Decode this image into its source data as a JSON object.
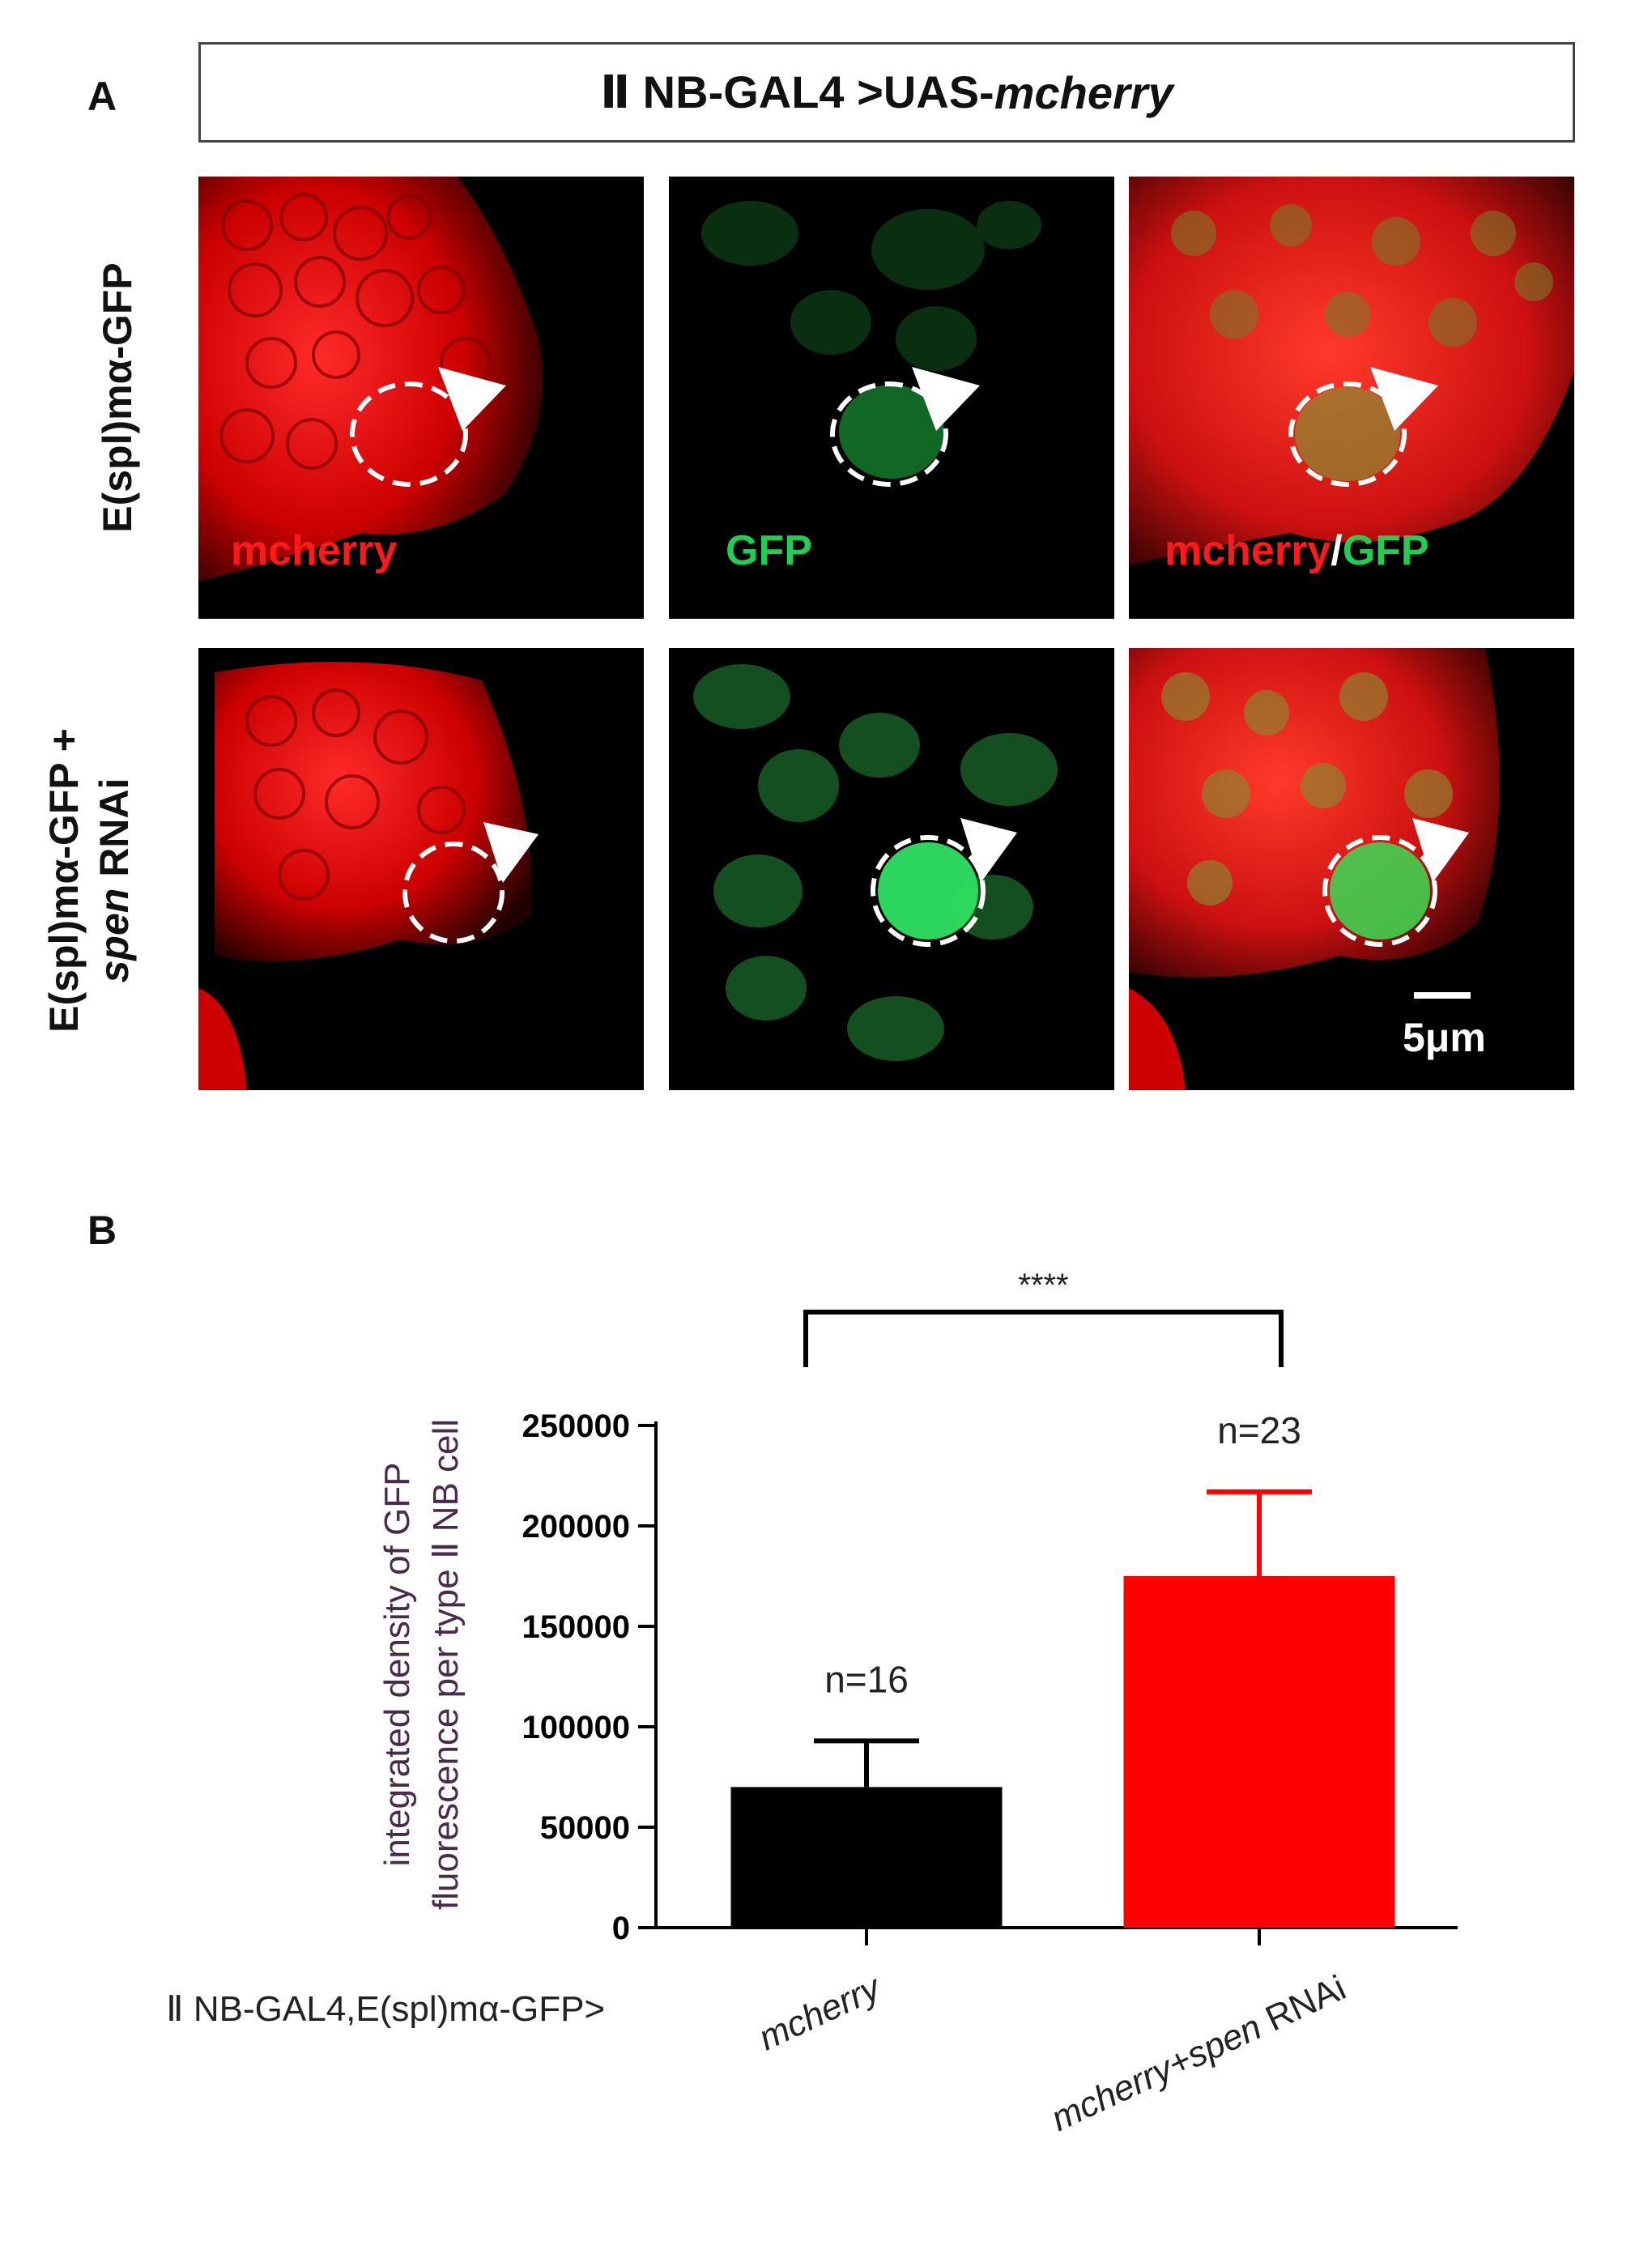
{
  "panel_a": {
    "letter": "A",
    "title_prefix": "Ⅱ NB-GAL4 >UAS-",
    "title_italic": "mcherry",
    "row1_label": "E(spl)mα-GFP",
    "row2_label_line1": "E(spl)mα-GFP +",
    "row2_label_italic": "spen",
    "row2_label_rest": " RNAi",
    "channel_mcherry": "mcherry",
    "channel_gfp": "GFP",
    "channel_merge_sep": "/",
    "scale_bar": "5μm"
  },
  "panel_b": {
    "letter": "B",
    "significance": "****",
    "genotype_label": "Ⅱ  NB-GAL4,E(spl)mα-GFP>"
  },
  "chart_data": {
    "type": "bar",
    "categories": [
      "mcherry",
      "mcherry+spen RNAi"
    ],
    "values": [
      70000,
      175000
    ],
    "errors": [
      23000,
      42000
    ],
    "bar_colors": [
      "#000000",
      "#ff0000"
    ],
    "n_labels": [
      "n=16",
      "n=23"
    ],
    "ylabel_line1": "integrated density of  GFP",
    "ylabel_line2": "fluorescence per type Ⅱ NB cell",
    "yticks": [
      0,
      50000,
      100000,
      150000,
      200000,
      250000
    ],
    "ylim": [
      0,
      250000
    ],
    "significance": "****"
  }
}
